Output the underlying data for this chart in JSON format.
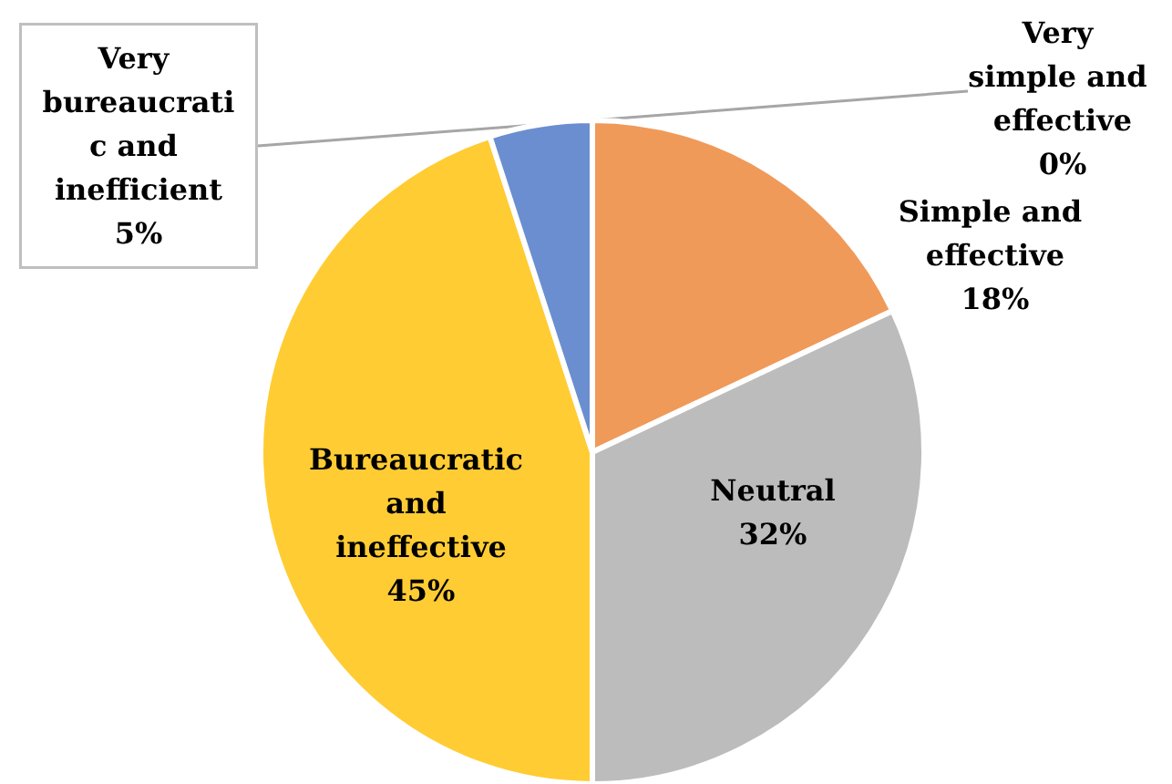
{
  "chart_data": {
    "type": "pie",
    "categories": [
      "Very simple and effective",
      "Simple and effective",
      "Neutral",
      "Bureaucratic and ineffective",
      "Very bureaucratic and inefficient"
    ],
    "values": [
      0,
      18,
      32,
      45,
      5
    ],
    "value_labels": [
      "0%",
      "18%",
      "32%",
      "45%",
      "5%"
    ],
    "colors": [
      "#4472c4",
      "#f09a5a",
      "#bcbcbc",
      "#ffcc33",
      "#6a8ed0"
    ]
  }
}
